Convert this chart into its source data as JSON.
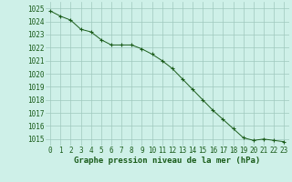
{
  "x": [
    0,
    1,
    2,
    3,
    4,
    5,
    6,
    7,
    8,
    9,
    10,
    11,
    12,
    13,
    14,
    15,
    16,
    17,
    18,
    19,
    20,
    21,
    22,
    23
  ],
  "y": [
    1024.8,
    1024.4,
    1024.1,
    1023.4,
    1023.2,
    1022.6,
    1022.2,
    1022.2,
    1022.2,
    1021.9,
    1021.5,
    1021.0,
    1020.4,
    1019.6,
    1018.8,
    1018.0,
    1017.2,
    1016.5,
    1015.8,
    1015.1,
    1014.9,
    1015.0,
    1014.9,
    1014.8
  ],
  "line_color": "#1a5c1a",
  "marker_color": "#1a5c1a",
  "bg_color": "#cef0e8",
  "grid_color": "#a0c8be",
  "xlabel": "Graphe pression niveau de la mer (hPa)",
  "xlabel_color": "#1a5c1a",
  "tick_color": "#1a5c1a",
  "ylim_min": 1014.5,
  "ylim_max": 1025.5,
  "xtick_labels": [
    "0",
    "1",
    "2",
    "3",
    "4",
    "5",
    "6",
    "7",
    "8",
    "9",
    "10",
    "11",
    "12",
    "13",
    "14",
    "15",
    "16",
    "17",
    "18",
    "19",
    "20",
    "21",
    "22",
    "23"
  ],
  "ytick_labels": [
    "1015",
    "1016",
    "1017",
    "1018",
    "1019",
    "1020",
    "1021",
    "1022",
    "1023",
    "1024",
    "1025"
  ],
  "ytick_values": [
    1015,
    1016,
    1017,
    1018,
    1019,
    1020,
    1021,
    1022,
    1023,
    1024,
    1025
  ],
  "xlabel_fontsize": 6.5,
  "tick_fontsize": 5.5
}
